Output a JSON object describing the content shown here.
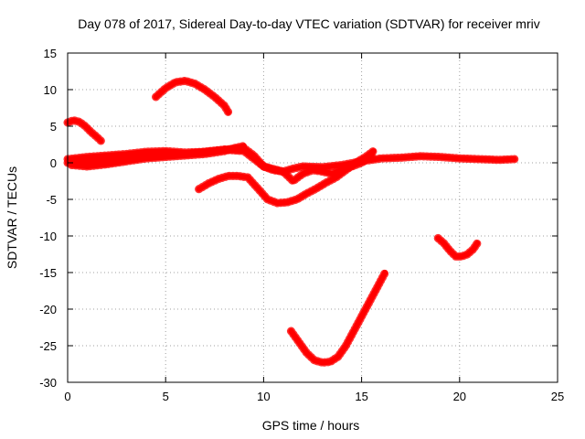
{
  "chart_data": {
    "type": "line",
    "title": "Day 078 of 2017, Sidereal Day-to-day VTEC variation (SDTVAR) for receiver mriv",
    "xlabel": "GPS time / hours",
    "ylabel": "SDTVAR / TECUs",
    "xlim": [
      0,
      25
    ],
    "ylim": [
      -30,
      15
    ],
    "xticks": [
      0,
      5,
      10,
      15,
      20,
      25
    ],
    "yticks": [
      15,
      10,
      5,
      0,
      -5,
      -10,
      -15,
      -20,
      -25,
      -30
    ],
    "grid": true,
    "legend": "none",
    "series_color": "#ff0000",
    "series": [
      {
        "name": "arc-1",
        "x": [
          0.0,
          0.3,
          0.6,
          0.9,
          1.2,
          1.5,
          1.7
        ],
        "y": [
          5.5,
          5.8,
          5.6,
          5.0,
          4.2,
          3.5,
          3.0
        ]
      },
      {
        "name": "arc-2",
        "x": [
          4.5,
          5.0,
          5.5,
          6.0,
          6.5,
          7.0,
          7.5,
          8.0,
          8.2
        ],
        "y": [
          9.0,
          10.2,
          11.0,
          11.2,
          10.8,
          10.0,
          9.0,
          7.8,
          6.9
        ]
      },
      {
        "name": "arc-3",
        "x": [
          0.0,
          1.0,
          2.0,
          3.0,
          4.0,
          5.0,
          6.0,
          7.0,
          8.0,
          9.0,
          9.5,
          10.0,
          10.5,
          11.0,
          11.5,
          12.0,
          13.0,
          14.0,
          15.0,
          16.0,
          17.0,
          18.0,
          19.0,
          20.0,
          21.0,
          22.0,
          22.8
        ],
        "y": [
          0.5,
          0.8,
          1.0,
          1.2,
          1.5,
          1.6,
          1.4,
          1.5,
          1.8,
          2.0,
          1.0,
          -0.5,
          -1.0,
          -1.2,
          -0.8,
          -0.5,
          -0.6,
          -0.3,
          0.2,
          0.6,
          0.7,
          0.9,
          0.8,
          0.6,
          0.5,
          0.4,
          0.5
        ]
      },
      {
        "name": "arc-4",
        "x": [
          0.0,
          1.0,
          2.0,
          3.0,
          4.0,
          5.0,
          6.0,
          7.0,
          8.0,
          9.0,
          10.0,
          11.0,
          11.5,
          12.0,
          12.5,
          13.0,
          13.5,
          14.0,
          14.5,
          15.0,
          15.5
        ],
        "y": [
          0.0,
          0.2,
          0.3,
          0.5,
          0.8,
          1.0,
          1.2,
          1.5,
          1.8,
          1.6,
          -0.5,
          -1.2,
          -2.5,
          -1.5,
          -1.0,
          -1.2,
          -1.5,
          -1.0,
          -0.5,
          0.0,
          1.0
        ]
      },
      {
        "name": "arc-5",
        "x": [
          0.2,
          1.0,
          2.0,
          3.0,
          4.0,
          5.0,
          6.0,
          7.0,
          7.5,
          8.0,
          8.5,
          9.0
        ],
        "y": [
          -0.3,
          -0.5,
          -0.2,
          0.2,
          0.6,
          0.8,
          1.0,
          1.2,
          1.4,
          1.6,
          2.0,
          2.3
        ]
      },
      {
        "name": "arc-6",
        "x": [
          6.7,
          7.2,
          7.7,
          8.2,
          8.7,
          9.2,
          9.7,
          10.2,
          10.7,
          11.2,
          11.7,
          12.2,
          12.7,
          13.2,
          13.7,
          14.2,
          14.7,
          15.2,
          15.6
        ],
        "y": [
          -3.6,
          -2.8,
          -2.2,
          -1.8,
          -1.8,
          -2.0,
          -3.5,
          -5.0,
          -5.5,
          -5.4,
          -5.0,
          -4.2,
          -3.5,
          -2.7,
          -2.0,
          -1.0,
          0.0,
          0.8,
          1.6
        ]
      },
      {
        "name": "arc-7",
        "x": [
          11.4,
          11.8,
          12.2,
          12.6,
          13.0,
          13.4,
          13.8,
          14.2,
          14.6,
          15.0,
          15.4,
          15.8,
          16.2
        ],
        "y": [
          -23.0,
          -24.5,
          -26.0,
          -27.0,
          -27.3,
          -27.2,
          -26.5,
          -25.0,
          -23.0,
          -21.0,
          -19.0,
          -17.0,
          -15.0
        ]
      },
      {
        "name": "arc-8",
        "x": [
          18.9,
          19.2,
          19.5,
          19.8,
          20.1,
          20.4,
          20.7,
          20.9
        ],
        "y": [
          -10.3,
          -11.0,
          -12.0,
          -12.8,
          -12.8,
          -12.5,
          -11.8,
          -11.0
        ]
      }
    ]
  }
}
